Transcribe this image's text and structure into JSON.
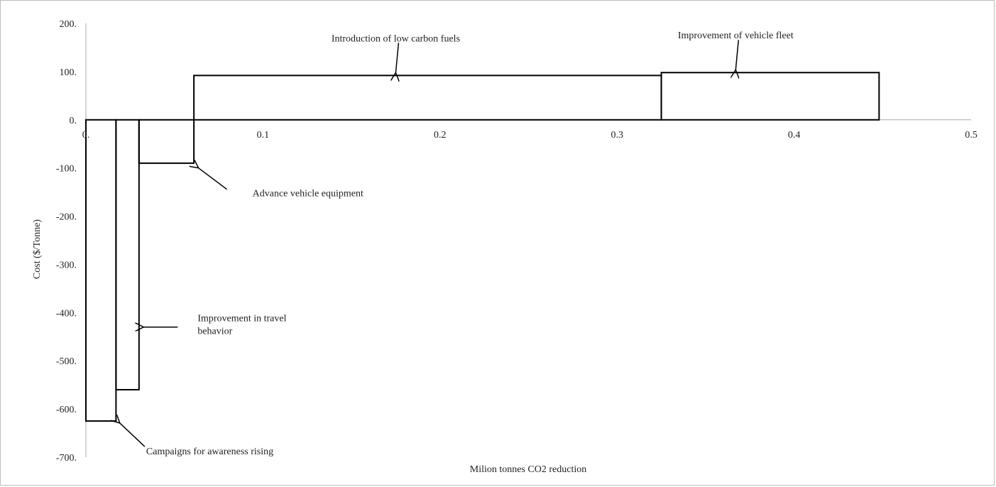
{
  "chart_data": {
    "type": "step",
    "title": "",
    "xlabel": "Milion tonnes CO2 reduction",
    "ylabel": "Cost ($/Tonne)",
    "xlim": [
      0,
      0.5
    ],
    "ylim": [
      -700,
      200
    ],
    "xticks": [
      {
        "value": 0,
        "label": "0."
      },
      {
        "value": 0.1,
        "label": "0.1"
      },
      {
        "value": 0.2,
        "label": "0.2"
      },
      {
        "value": 0.3,
        "label": "0.3"
      },
      {
        "value": 0.4,
        "label": "0.4"
      },
      {
        "value": 0.5,
        "label": "0.5"
      }
    ],
    "yticks": [
      {
        "value": 200,
        "label": "200."
      },
      {
        "value": 100,
        "label": "100."
      },
      {
        "value": 0,
        "label": "0."
      },
      {
        "value": -100,
        "label": "-100."
      },
      {
        "value": -200,
        "label": "-200."
      },
      {
        "value": -300,
        "label": "-300."
      },
      {
        "value": -400,
        "label": "-400."
      },
      {
        "value": -500,
        "label": "-500."
      },
      {
        "value": -600,
        "label": "-600."
      },
      {
        "value": -700,
        "label": "-700."
      }
    ],
    "grid": false,
    "legend": "none",
    "bars": [
      {
        "x_start": 0.0,
        "x_end": 0.017,
        "value": -625
      },
      {
        "x_start": 0.017,
        "x_end": 0.03,
        "value": -560
      },
      {
        "x_start": 0.03,
        "x_end": 0.061,
        "value": -90
      },
      {
        "x_start": 0.061,
        "x_end": 0.325,
        "value": 92
      },
      {
        "x_start": 0.325,
        "x_end": 0.448,
        "value": 98
      }
    ],
    "annotations": [
      {
        "lines": [
          "Introduction of low carbon fuels"
        ],
        "target": [
          0.175,
          92
        ],
        "anchor": "above"
      },
      {
        "lines": [
          "Improvement of vehicle fleet"
        ],
        "target": [
          0.367,
          98
        ],
        "anchor": "above"
      },
      {
        "lines": [
          "Advance vehicle equipment"
        ],
        "target": [
          0.062,
          -100
        ],
        "anchor": "right"
      },
      {
        "lines": [
          "Improvement in travel",
          "behavior"
        ],
        "target": [
          0.031,
          -430
        ],
        "anchor": "right"
      },
      {
        "lines": [
          "Campaigns for awareness rising"
        ],
        "target": [
          0.018,
          -625
        ],
        "anchor": "below-right"
      }
    ]
  }
}
